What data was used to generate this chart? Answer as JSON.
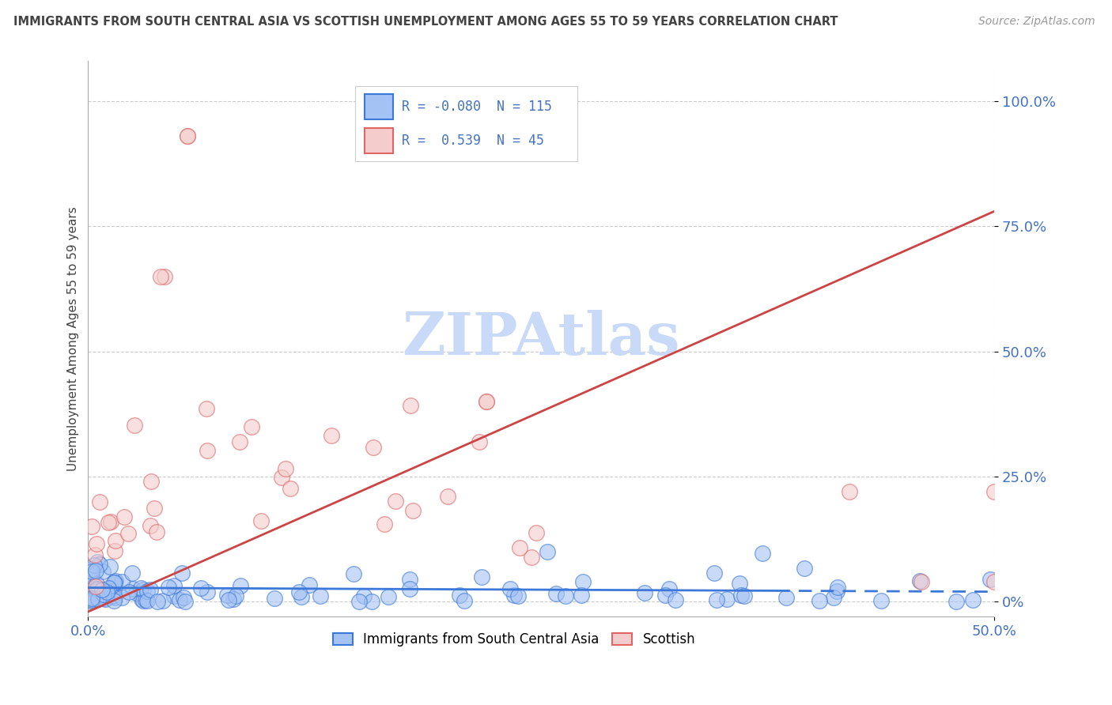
{
  "title": "IMMIGRANTS FROM SOUTH CENTRAL ASIA VS SCOTTISH UNEMPLOYMENT AMONG AGES 55 TO 59 YEARS CORRELATION CHART",
  "source": "Source: ZipAtlas.com",
  "xlim": [
    0.0,
    0.5
  ],
  "ylim": [
    -0.03,
    1.08
  ],
  "blue_R": -0.08,
  "blue_N": 115,
  "pink_R": 0.539,
  "pink_N": 45,
  "blue_face_color": "#a4c2f4",
  "blue_edge_color": "#3c78d8",
  "pink_face_color": "#f4cccc",
  "pink_edge_color": "#e06666",
  "blue_line_color": "#3c78d8",
  "pink_line_color": "#cc4444",
  "watermark_color": "#c9daf8",
  "background_color": "#ffffff",
  "grid_color": "#cccccc",
  "legend_label_blue": "Immigrants from South Central Asia",
  "legend_label_pink": "Scottish",
  "ylabel": "Unemployment Among Ages 55 to 59 years",
  "ytick_vals": [
    0.0,
    0.25,
    0.5,
    0.75,
    1.0
  ],
  "ytick_labels": [
    "0%",
    "25.0%",
    "50.0%",
    "75.0%",
    "100.0%"
  ],
  "xtick_vals": [
    0.0,
    0.5
  ],
  "xtick_labels": [
    "0.0%",
    "50.0%"
  ],
  "tick_color": "#4472c4",
  "title_color": "#434343",
  "source_color": "#999999",
  "ylabel_color": "#434343",
  "pink_line_x0": 0.0,
  "pink_line_y0": -0.02,
  "pink_line_x1": 0.5,
  "pink_line_y1": 0.78,
  "blue_line_x0": 0.0,
  "blue_line_y0": 0.028,
  "blue_line_x1": 0.5,
  "blue_line_y1": 0.02
}
